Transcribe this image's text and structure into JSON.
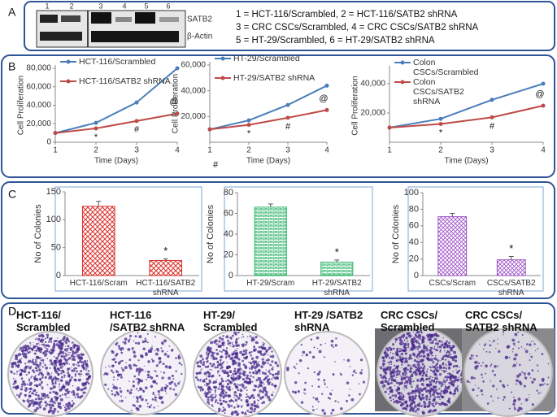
{
  "panel_labels": [
    "A",
    "B",
    "C",
    "D"
  ],
  "blot": {
    "lanes": [
      "1",
      "2",
      "3",
      "4",
      "5",
      "6"
    ],
    "rows": [
      "SATB2",
      "β-Actin"
    ],
    "key": [
      "1 = HCT-116/Scrambled, 2 = HCT-116/SATB2 shRNA",
      "3 = CRC CSCs/Scrambled, 4 = CRC CSCs/SATB2 shRNA",
      "5 = HT-29/Scrambled, 6 = HT-29/SATB2 shRNA"
    ]
  },
  "chart_data": [
    {
      "type": "line",
      "x_label": "Time (Days)",
      "y_label": "Cell Proliferation",
      "x": [
        1,
        2,
        3,
        4
      ],
      "xlim": [
        1,
        4
      ],
      "xticks": [
        1,
        2,
        3,
        4
      ],
      "ylim": [
        0,
        80000
      ],
      "yticks": [
        {
          "value": 0,
          "label": "0"
        },
        {
          "value": 20000,
          "label": "20,000"
        },
        {
          "value": 40000,
          "label": "40,000"
        },
        {
          "value": 60000,
          "label": "60,000"
        },
        {
          "value": 80000,
          "label": "80,000"
        }
      ],
      "series": [
        {
          "name": "HCT-116/Scrambled",
          "color": "#4a7ebb",
          "values": [
            10000,
            21000,
            43000,
            80000
          ]
        },
        {
          "name": "HCT-116/SATB2 shRNA",
          "color": "#be4b48",
          "values": [
            10000,
            15000,
            23000,
            31000
          ]
        }
      ],
      "annotations": [
        "*",
        "#",
        "@"
      ]
    },
    {
      "type": "line",
      "x_label": "Time (Days)",
      "y_label": "Cell Proliferation",
      "x": [
        1,
        2,
        3,
        4
      ],
      "xlim": [
        1,
        4
      ],
      "xticks": [
        1,
        2,
        3,
        4
      ],
      "ylim": [
        0,
        60000
      ],
      "yticks": [
        {
          "value": 20000,
          "label": "20,000"
        },
        {
          "value": 40000,
          "label": "40,000"
        },
        {
          "value": 60000,
          "label": "60,000"
        }
      ],
      "series": [
        {
          "name": "HT-29/Scrambled",
          "color": "#4a7ebb",
          "values": [
            10000,
            17000,
            29000,
            44000
          ]
        },
        {
          "name": "HT-29/SATB2 shRNA",
          "color": "#be4b48",
          "values": [
            10000,
            13500,
            19000,
            25000
          ]
        }
      ],
      "annotations": [
        "*",
        "#",
        "@"
      ],
      "note": "#"
    },
    {
      "type": "line",
      "x_label": "Time (Days)",
      "y_label": "Cell Proliferation",
      "x": [
        1,
        2,
        3,
        4
      ],
      "xlim": [
        1,
        4
      ],
      "xticks": [
        1,
        2,
        3,
        4
      ],
      "ylim": [
        0,
        50000
      ],
      "yticks": [
        {
          "value": 20000,
          "label": "20,000"
        },
        {
          "value": 40000,
          "label": "40,000"
        }
      ],
      "series": [
        {
          "name": "Colon CSCs/Scrambled",
          "color": "#4a7ebb",
          "values": [
            10000,
            16000,
            29000,
            40000
          ]
        },
        {
          "name": "Colon CSCs/SATB2 shRNA",
          "color": "#be4b48",
          "values": [
            10000,
            12500,
            17000,
            25000
          ]
        }
      ],
      "annotations": [
        "*",
        "#",
        "@"
      ]
    },
    {
      "type": "bar",
      "y_label": "No of Colonies",
      "categories": [
        "HCT-116/Scram",
        "HCT-116/SATB2 shRNA"
      ],
      "values": [
        124,
        27
      ],
      "errors": [
        9,
        3
      ],
      "color": "#d9302b",
      "ylim": [
        0,
        150
      ],
      "yticks": [
        0,
        50,
        100,
        150
      ],
      "significance": "*"
    },
    {
      "type": "bar",
      "y_label": "No of Colonies",
      "categories": [
        "HT-29/Scram",
        "HT-29/SATB2  shRNA"
      ],
      "values": [
        66,
        13
      ],
      "errors": [
        3,
        2
      ],
      "color": "#2fb36a",
      "ylim": [
        0,
        80
      ],
      "yticks": [
        0,
        20,
        40,
        60,
        80
      ],
      "significance": "*"
    },
    {
      "type": "bar",
      "y_label": "No of Colonies",
      "categories": [
        "CSCs/Scram",
        "CSCs/SATB2  shRNA"
      ],
      "values": [
        71,
        19
      ],
      "errors": [
        4,
        4
      ],
      "color": "#9b4fc4",
      "ylim": [
        0,
        100
      ],
      "yticks": [
        0,
        20,
        40,
        60,
        80,
        100
      ],
      "significance": "*"
    }
  ],
  "colonies": {
    "labels": [
      "HCT-116/ Scrambled",
      "HCT-116 /SATB2 shRNA",
      "HT-29/ Scrambled",
      "HT-29 /SATB2 shRNA",
      "CRC CSCs/ Scrambled",
      "CRC CSCs/ SATB2 shRNA"
    ]
  }
}
